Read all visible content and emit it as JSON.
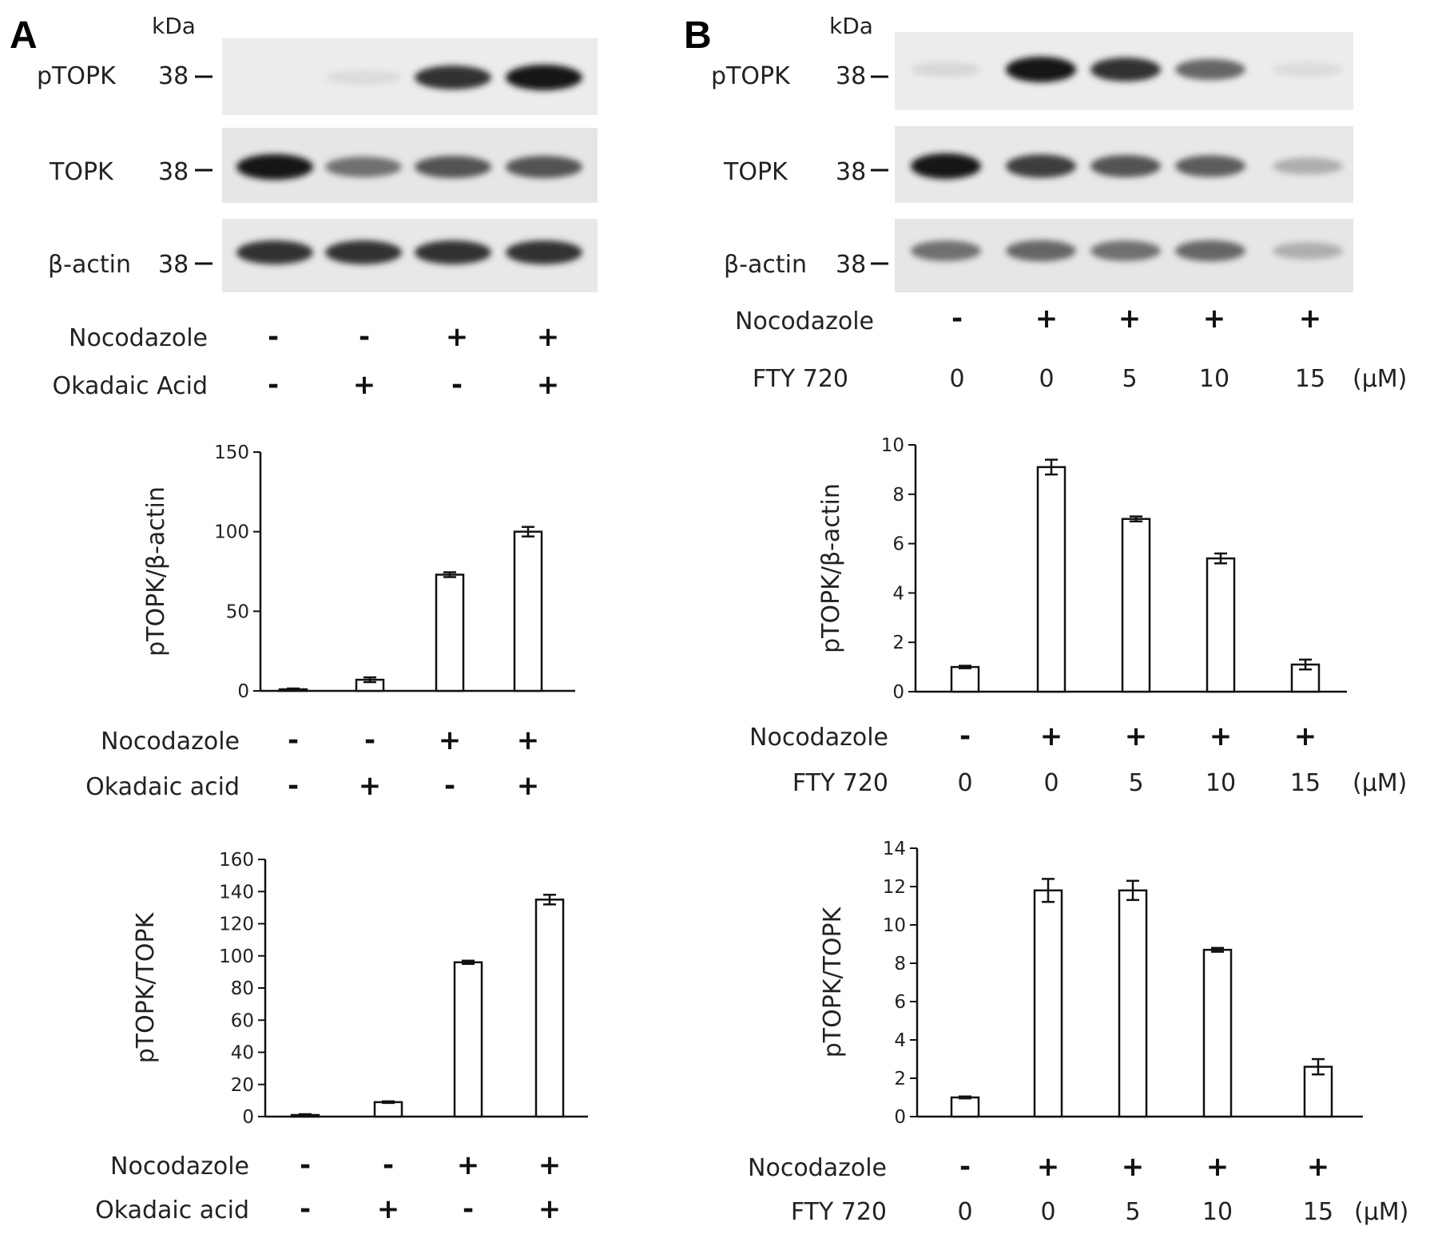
{
  "panels": [
    {
      "letter": "A",
      "blot": {
        "kda_label": "kDa",
        "rows": [
          {
            "name": "pTOPK",
            "marker": "38"
          },
          {
            "name": "TOPK",
            "marker": "38"
          },
          {
            "name": "β-actin",
            "marker": "38"
          }
        ],
        "lane_intensity": {
          "pTOPK": [
            0.0,
            0.03,
            0.85,
            1.0
          ],
          "TOPK": [
            1.0,
            0.55,
            0.7,
            0.7
          ],
          "β-actin": [
            0.85,
            0.85,
            0.85,
            0.85
          ]
        },
        "conditions": [
          {
            "label": "Nocodazole",
            "values": [
              "-",
              "-",
              "+",
              "+"
            ]
          },
          {
            "label": "Okadaic Acid",
            "values": [
              "-",
              "+",
              "-",
              "+"
            ]
          }
        ]
      }
    },
    {
      "letter": "B",
      "blot": {
        "kda_label": "kDa",
        "rows": [
          {
            "name": "pTOPK",
            "marker": "38"
          },
          {
            "name": "TOPK",
            "marker": "38"
          },
          {
            "name": "β-actin",
            "marker": "38"
          }
        ],
        "lane_intensity": {
          "pTOPK": [
            0.05,
            1.0,
            0.85,
            0.6,
            0.03
          ],
          "TOPK": [
            1.0,
            0.8,
            0.7,
            0.65,
            0.25
          ],
          "β-actin": [
            0.55,
            0.6,
            0.55,
            0.6,
            0.25
          ]
        },
        "conditions": [
          {
            "label": "Nocodazole",
            "values": [
              "-",
              "+",
              "+",
              "+",
              "+"
            ]
          },
          {
            "label": "FTY 720",
            "values": [
              "0",
              "0",
              "5",
              "10",
              "15"
            ],
            "unit": "(μM)"
          }
        ]
      }
    }
  ],
  "chart_data": [
    {
      "type": "bar",
      "panel": "A",
      "ylabel": "pTOPK/β-actin",
      "ylim": [
        0,
        150
      ],
      "yticks": [
        0,
        50,
        100,
        150
      ],
      "values": [
        1,
        7,
        73,
        100
      ],
      "errors": [
        0.5,
        1.5,
        1.5,
        3
      ],
      "conditions": [
        {
          "label": "Nocodazole",
          "values": [
            "-",
            "-",
            "+",
            "+"
          ]
        },
        {
          "label": "Okadaic acid",
          "values": [
            "-",
            "+",
            "-",
            "+"
          ]
        }
      ]
    },
    {
      "type": "bar",
      "panel": "B",
      "ylabel": "pTOPK/β-actin",
      "ylim": [
        0,
        10
      ],
      "yticks": [
        0,
        2,
        4,
        6,
        8,
        10
      ],
      "values": [
        1.0,
        9.1,
        7.0,
        5.4,
        1.1
      ],
      "errors": [
        0.05,
        0.3,
        0.1,
        0.2,
        0.2
      ],
      "conditions": [
        {
          "label": "Nocodazole",
          "values": [
            "-",
            "+",
            "+",
            "+",
            "+"
          ]
        },
        {
          "label": "FTY 720",
          "values": [
            "0",
            "0",
            "5",
            "10",
            "15"
          ],
          "unit": "(μM)"
        }
      ]
    },
    {
      "type": "bar",
      "panel": "A",
      "ylabel": "pTOPK/TOPK",
      "ylim": [
        0,
        160
      ],
      "yticks": [
        0,
        20,
        40,
        60,
        80,
        100,
        120,
        140,
        160
      ],
      "values": [
        1,
        9,
        96,
        135
      ],
      "errors": [
        0.5,
        0.5,
        1,
        3
      ],
      "conditions": [
        {
          "label": "Nocodazole",
          "values": [
            "-",
            "-",
            "+",
            "+"
          ]
        },
        {
          "label": "Okadaic acid",
          "values": [
            "-",
            "+",
            "-",
            "+"
          ]
        }
      ]
    },
    {
      "type": "bar",
      "panel": "B",
      "ylabel": "pTOPK/TOPK",
      "ylim": [
        0,
        14
      ],
      "yticks": [
        0,
        2,
        4,
        6,
        8,
        10,
        12,
        14
      ],
      "values": [
        1.0,
        11.8,
        11.8,
        8.7,
        2.6
      ],
      "errors": [
        0.05,
        0.6,
        0.5,
        0.1,
        0.4
      ],
      "conditions": [
        {
          "label": "Nocodazole",
          "values": [
            "-",
            "+",
            "+",
            "+",
            "+"
          ]
        },
        {
          "label": "FTY 720",
          "values": [
            "0",
            "0",
            "5",
            "10",
            "15"
          ],
          "unit": "(μM)"
        }
      ]
    }
  ]
}
